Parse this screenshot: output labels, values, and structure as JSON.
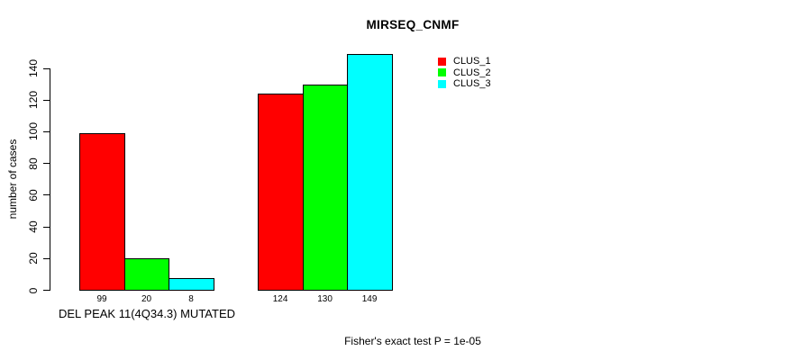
{
  "chart_data": {
    "type": "bar",
    "title": "MIRSEQ_CNMF",
    "ylabel": "number of cases",
    "xlabel": "",
    "ylim": [
      0,
      140
    ],
    "yticks": [
      0,
      20,
      40,
      60,
      80,
      100,
      120,
      140
    ],
    "categories": [
      "DEL PEAK 11(4Q34.3) MUTATED",
      ""
    ],
    "series": [
      {
        "name": "CLUS_1",
        "color": "#ff0000",
        "values": [
          99,
          124
        ]
      },
      {
        "name": "CLUS_2",
        "color": "#00ff00",
        "values": [
          20,
          130
        ]
      },
      {
        "name": "CLUS_3",
        "color": "#00ffff",
        "values": [
          8,
          149
        ]
      }
    ],
    "bar_value_labels": [
      [
        99,
        20,
        8
      ],
      [
        124,
        130,
        149
      ]
    ],
    "legend_position": "top-right",
    "legend_entries": [
      "CLUS_1",
      "CLUS_2",
      "CLUS_3"
    ],
    "grid": false,
    "footer": "Fisher's exact test P = 1e-05",
    "colors": {
      "axis": "#000000",
      "text": "#000000",
      "background": "#ffffff",
      "bar_border": "#000000"
    }
  }
}
